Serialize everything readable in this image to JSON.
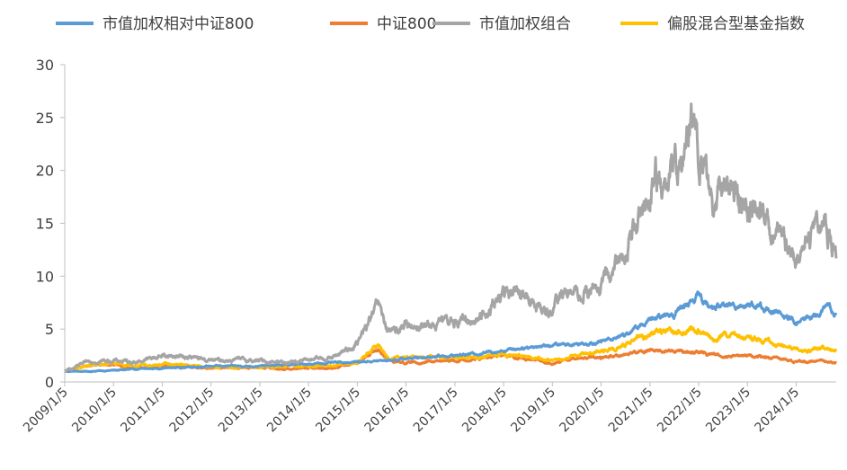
{
  "chart_data": {
    "type": "line",
    "title": "",
    "xlabel": "",
    "ylabel": "",
    "ylim": [
      0,
      30
    ],
    "yticks": [
      0,
      5,
      10,
      15,
      20,
      25,
      30
    ],
    "x_range": [
      "2009-01-05",
      "2024-10-31"
    ],
    "xtick_labels": [
      "2009/1/5",
      "2010/1/5",
      "2011/1/5",
      "2012/1/5",
      "2013/1/5",
      "2014/1/5",
      "2015/1/5",
      "2016/1/5",
      "2017/1/5",
      "2018/1/5",
      "2019/1/5",
      "2020/1/5",
      "2021/1/5",
      "2022/1/5",
      "2023/1/5",
      "2024/1/5"
    ],
    "grid": false,
    "legend_position": "top",
    "series": [
      {
        "name": "市值加权相对中证800",
        "color": "#5B9BD5",
        "points": [
          [
            "2009-01-05",
            1.0
          ],
          [
            "2009-07-01",
            1.0
          ],
          [
            "2010-01-05",
            1.1
          ],
          [
            "2010-07-01",
            1.2
          ],
          [
            "2011-01-05",
            1.3
          ],
          [
            "2011-07-01",
            1.4
          ],
          [
            "2012-01-05",
            1.5
          ],
          [
            "2012-07-01",
            1.5
          ],
          [
            "2013-01-05",
            1.5
          ],
          [
            "2013-07-01",
            1.6
          ],
          [
            "2014-01-05",
            1.7
          ],
          [
            "2014-07-01",
            1.8
          ],
          [
            "2015-01-05",
            1.9
          ],
          [
            "2015-07-01",
            2.0
          ],
          [
            "2016-01-05",
            2.2
          ],
          [
            "2016-07-01",
            2.4
          ],
          [
            "2017-01-05",
            2.5
          ],
          [
            "2017-07-01",
            2.7
          ],
          [
            "2018-01-05",
            3.0
          ],
          [
            "2018-07-01",
            3.3
          ],
          [
            "2019-01-05",
            3.5
          ],
          [
            "2019-07-01",
            3.6
          ],
          [
            "2020-01-05",
            3.8
          ],
          [
            "2020-07-01",
            4.5
          ],
          [
            "2021-01-05",
            5.8
          ],
          [
            "2021-07-01",
            6.5
          ],
          [
            "2022-01-05",
            8.2
          ],
          [
            "2022-04-01",
            7.0
          ],
          [
            "2022-07-01",
            7.2
          ],
          [
            "2023-01-05",
            7.4
          ],
          [
            "2023-07-01",
            6.8
          ],
          [
            "2024-01-05",
            5.6
          ],
          [
            "2024-07-01",
            6.5
          ],
          [
            "2024-09-01",
            7.2
          ],
          [
            "2024-10-31",
            6.3
          ]
        ]
      },
      {
        "name": "中证800",
        "color": "#ED7D31",
        "points": [
          [
            "2009-01-05",
            1.0
          ],
          [
            "2009-08-01",
            1.6
          ],
          [
            "2010-01-05",
            1.6
          ],
          [
            "2010-07-01",
            1.3
          ],
          [
            "2011-01-05",
            1.5
          ],
          [
            "2011-07-01",
            1.4
          ],
          [
            "2012-01-05",
            1.3
          ],
          [
            "2012-07-01",
            1.3
          ],
          [
            "2013-01-05",
            1.4
          ],
          [
            "2013-07-01",
            1.2
          ],
          [
            "2014-01-05",
            1.3
          ],
          [
            "2014-07-01",
            1.3
          ],
          [
            "2015-01-05",
            1.9
          ],
          [
            "2015-06-10",
            3.0
          ],
          [
            "2015-09-01",
            2.0
          ],
          [
            "2016-01-05",
            1.8
          ],
          [
            "2016-07-01",
            1.9
          ],
          [
            "2017-01-05",
            2.0
          ],
          [
            "2017-07-01",
            2.2
          ],
          [
            "2018-01-05",
            2.5
          ],
          [
            "2018-07-01",
            2.1
          ],
          [
            "2019-01-05",
            1.8
          ],
          [
            "2019-07-01",
            2.2
          ],
          [
            "2020-01-05",
            2.3
          ],
          [
            "2020-07-01",
            2.6
          ],
          [
            "2021-01-05",
            3.0
          ],
          [
            "2021-07-01",
            2.9
          ],
          [
            "2022-01-05",
            2.8
          ],
          [
            "2022-07-01",
            2.5
          ],
          [
            "2023-01-05",
            2.5
          ],
          [
            "2023-07-01",
            2.3
          ],
          [
            "2024-01-05",
            1.9
          ],
          [
            "2024-07-01",
            2.0
          ],
          [
            "2024-10-31",
            1.9
          ]
        ]
      },
      {
        "name": "市值加权组合",
        "color": "#A5A5A5",
        "points": [
          [
            "2009-01-05",
            1.0
          ],
          [
            "2009-08-01",
            2.0
          ],
          [
            "2010-01-05",
            2.0
          ],
          [
            "2010-07-01",
            1.9
          ],
          [
            "2011-01-05",
            2.5
          ],
          [
            "2011-07-01",
            2.4
          ],
          [
            "2012-01-05",
            2.0
          ],
          [
            "2012-07-01",
            2.1
          ],
          [
            "2013-01-05",
            2.0
          ],
          [
            "2013-07-01",
            1.9
          ],
          [
            "2014-01-05",
            2.1
          ],
          [
            "2014-07-01",
            2.3
          ],
          [
            "2015-01-05",
            3.6
          ],
          [
            "2015-06-10",
            7.2
          ],
          [
            "2015-09-01",
            4.5
          ],
          [
            "2016-01-05",
            5.5
          ],
          [
            "2016-07-01",
            5.3
          ],
          [
            "2017-01-05",
            5.8
          ],
          [
            "2017-07-01",
            5.9
          ],
          [
            "2018-01-05",
            8.5
          ],
          [
            "2018-07-01",
            7.8
          ],
          [
            "2019-01-05",
            6.5
          ],
          [
            "2019-04-01",
            8.8
          ],
          [
            "2019-07-01",
            8.0
          ],
          [
            "2020-01-05",
            9.0
          ],
          [
            "2020-07-01",
            12.0
          ],
          [
            "2020-10-01",
            16.5
          ],
          [
            "2021-01-05",
            17.5
          ],
          [
            "2021-02-15",
            20.5
          ],
          [
            "2021-04-01",
            17.0
          ],
          [
            "2021-07-01",
            22.0
          ],
          [
            "2021-09-01",
            20.5
          ],
          [
            "2021-12-01",
            24.8
          ],
          [
            "2022-01-05",
            21.5
          ],
          [
            "2022-04-25",
            15.5
          ],
          [
            "2022-07-01",
            19.5
          ],
          [
            "2023-01-05",
            16.5
          ],
          [
            "2023-04-01",
            17.0
          ],
          [
            "2023-07-01",
            14.5
          ],
          [
            "2024-01-05",
            11.5
          ],
          [
            "2024-02-05",
            11.0
          ],
          [
            "2024-05-01",
            14.5
          ],
          [
            "2024-08-01",
            15.0
          ],
          [
            "2024-10-31",
            12.3
          ]
        ]
      },
      {
        "name": "偏股混合型基金指数",
        "color": "#FFC000",
        "points": [
          [
            "2009-01-05",
            1.0
          ],
          [
            "2009-08-01",
            1.6
          ],
          [
            "2010-01-05",
            1.7
          ],
          [
            "2010-07-01",
            1.5
          ],
          [
            "2011-01-05",
            1.7
          ],
          [
            "2011-07-01",
            1.6
          ],
          [
            "2012-01-05",
            1.4
          ],
          [
            "2012-07-01",
            1.4
          ],
          [
            "2013-01-05",
            1.4
          ],
          [
            "2013-07-01",
            1.5
          ],
          [
            "2014-01-05",
            1.5
          ],
          [
            "2014-07-01",
            1.5
          ],
          [
            "2015-01-05",
            1.8
          ],
          [
            "2015-06-10",
            3.5
          ],
          [
            "2015-09-01",
            2.2
          ],
          [
            "2016-01-05",
            2.3
          ],
          [
            "2016-07-01",
            2.3
          ],
          [
            "2017-01-05",
            2.3
          ],
          [
            "2017-07-01",
            2.4
          ],
          [
            "2018-01-05",
            2.6
          ],
          [
            "2018-07-01",
            2.3
          ],
          [
            "2019-01-05",
            2.0
          ],
          [
            "2019-07-01",
            2.6
          ],
          [
            "2020-01-05",
            2.8
          ],
          [
            "2020-07-01",
            3.5
          ],
          [
            "2021-01-05",
            4.5
          ],
          [
            "2021-02-15",
            5.0
          ],
          [
            "2021-07-01",
            4.6
          ],
          [
            "2022-01-05",
            5.1
          ],
          [
            "2022-04-25",
            3.8
          ],
          [
            "2022-07-01",
            4.3
          ],
          [
            "2023-01-05",
            4.2
          ],
          [
            "2023-07-01",
            3.8
          ],
          [
            "2024-01-05",
            3.0
          ],
          [
            "2024-02-05",
            2.9
          ],
          [
            "2024-07-01",
            3.2
          ],
          [
            "2024-10-31",
            3.0
          ]
        ]
      }
    ]
  }
}
